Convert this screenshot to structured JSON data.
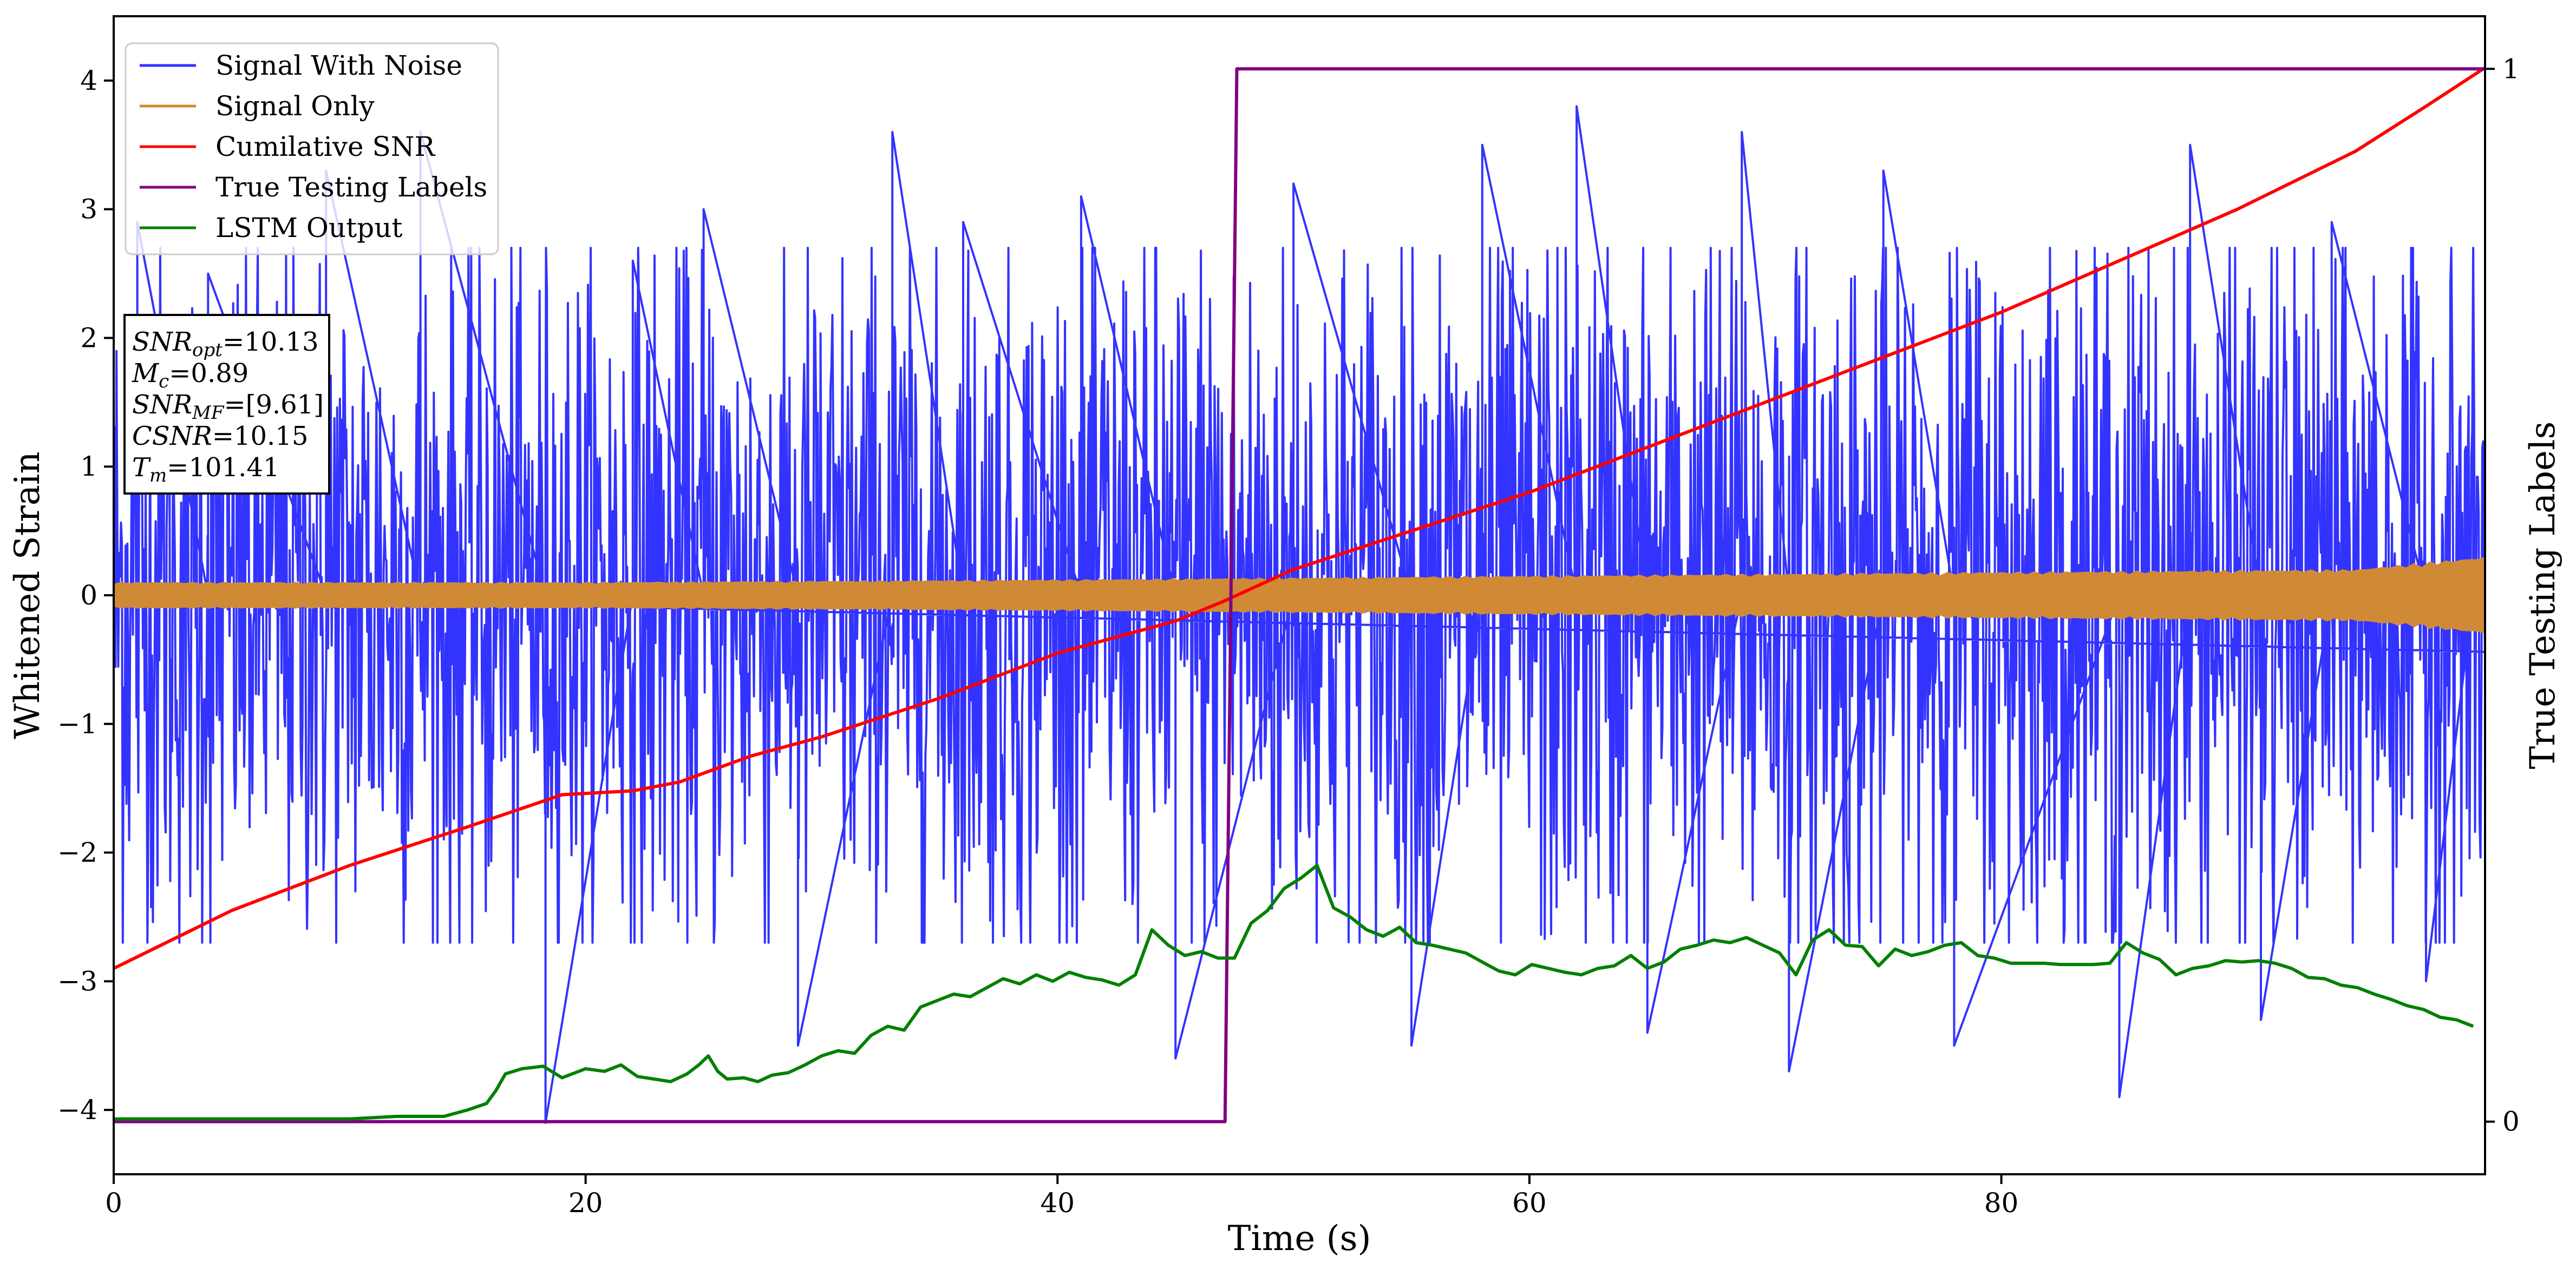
{
  "chart_data": {
    "type": "line",
    "xlabel": "Time (s)",
    "ylabel": "Whitened Strain",
    "ylabel_right": "True Testing Labels",
    "xlim": [
      0,
      100.5
    ],
    "ylim": [
      -4.5,
      4.5
    ],
    "ylim_right": [
      -0.05,
      1.05
    ],
    "x_ticks": [
      0,
      20,
      40,
      60,
      80
    ],
    "y_ticks": [
      -4,
      -3,
      -2,
      -1,
      0,
      1,
      2,
      3,
      4
    ],
    "y_ticks_right": [
      0,
      1
    ],
    "grid": false,
    "legend_position": "upper-left",
    "series": [
      {
        "name": "Signal With Noise",
        "axis": "left",
        "color": "#3333ff",
        "kind": "noise-band",
        "amplitude_envelope": [
          [
            0,
            2.2
          ],
          [
            20,
            2.2
          ],
          [
            50,
            2.3
          ],
          [
            80,
            2.4
          ],
          [
            100.5,
            2.4
          ]
        ],
        "spikes": [
          [
            1,
            2.9
          ],
          [
            4,
            2.5
          ],
          [
            9,
            3.3
          ],
          [
            13,
            3.6
          ],
          [
            18.3,
            -4.1
          ],
          [
            22,
            2.6
          ],
          [
            25,
            3.0
          ],
          [
            29,
            -3.5
          ],
          [
            33,
            3.6
          ],
          [
            36,
            2.9
          ],
          [
            41,
            3.1
          ],
          [
            45,
            -3.6
          ],
          [
            50,
            3.2
          ],
          [
            55,
            -3.5
          ],
          [
            58,
            3.5
          ],
          [
            62,
            3.8
          ],
          [
            65,
            -3.4
          ],
          [
            69,
            3.6
          ],
          [
            71,
            -3.7
          ],
          [
            75,
            3.3
          ],
          [
            78,
            -3.5
          ],
          [
            85,
            -3.9
          ],
          [
            88,
            3.5
          ],
          [
            91,
            -3.3
          ],
          [
            94,
            2.9
          ],
          [
            98,
            -3.0
          ],
          [
            100,
            2.7
          ]
        ]
      },
      {
        "name": "Signal Only",
        "axis": "left",
        "color": "#d08a35",
        "kind": "band",
        "amplitude_envelope": [
          [
            0,
            0.1
          ],
          [
            20,
            0.1
          ],
          [
            40,
            0.12
          ],
          [
            60,
            0.15
          ],
          [
            80,
            0.18
          ],
          [
            95,
            0.2
          ],
          [
            100.5,
            0.3
          ]
        ]
      },
      {
        "name": "Cumilative SNR",
        "axis": "left",
        "color": "#ff0000",
        "x": [
          0,
          5,
          10,
          15,
          19,
          22,
          24,
          27,
          30,
          35,
          40,
          45,
          47,
          50,
          55,
          60,
          65,
          70,
          75,
          80,
          85,
          90,
          95,
          98,
          100.5
        ],
        "y": [
          -2.9,
          -2.45,
          -2.1,
          -1.8,
          -1.55,
          -1.52,
          -1.45,
          -1.25,
          -1.1,
          -0.8,
          -0.45,
          -0.2,
          -0.05,
          0.2,
          0.5,
          0.8,
          1.15,
          1.5,
          1.85,
          2.2,
          2.6,
          3.0,
          3.45,
          3.8,
          4.1
        ]
      },
      {
        "name": "True Testing Labels",
        "axis": "right",
        "color": "#800080",
        "x": [
          0,
          47.1,
          47.6,
          100.5
        ],
        "y": [
          0,
          0,
          1,
          1
        ]
      },
      {
        "name": "LSTM Output",
        "axis": "left",
        "color": "#008000",
        "x": [
          0,
          10,
          12,
          14,
          15,
          15.8,
          16.2,
          16.6,
          17.3,
          18.2,
          19,
          20,
          20.8,
          21.5,
          22.2,
          22.9,
          23.6,
          24.3,
          24.8,
          25.2,
          25.6,
          26,
          26.7,
          27.3,
          27.9,
          28.6,
          29.3,
          30,
          30.7,
          31.4,
          32.1,
          32.8,
          33.5,
          34.2,
          34.9,
          35.6,
          36.3,
          37,
          37.7,
          38.4,
          39.1,
          39.8,
          40.5,
          41.2,
          41.9,
          42.6,
          43.3,
          44,
          44.7,
          45.4,
          46.1,
          46.8,
          47.5,
          48.2,
          48.9,
          49.6,
          50.3,
          51,
          51.7,
          52.4,
          53.1,
          53.8,
          54.5,
          55.2,
          55.9,
          56.6,
          57.3,
          58,
          58.7,
          59.4,
          60.1,
          60.8,
          61.5,
          62.2,
          62.9,
          63.6,
          64.3,
          65,
          65.7,
          66.4,
          67.1,
          67.8,
          68.5,
          69.2,
          69.9,
          70.6,
          71.3,
          72,
          72.7,
          73.4,
          74.1,
          74.8,
          75.5,
          76.2,
          76.9,
          77.6,
          78.3,
          79,
          79.7,
          80.4,
          81.1,
          81.8,
          82.5,
          83.2,
          83.9,
          84.6,
          85.3,
          86,
          86.7,
          87.4,
          88.1,
          88.8,
          89.5,
          90.2,
          90.9,
          91.6,
          92.3,
          93,
          93.7,
          94.4,
          95.1,
          95.8,
          96.5,
          97.2,
          97.9,
          98.6,
          99.3,
          100
        ],
        "y": [
          -4.07,
          -4.07,
          -4.05,
          -4.05,
          -4.0,
          -3.95,
          -3.85,
          -3.72,
          -3.68,
          -3.66,
          -3.75,
          -3.68,
          -3.7,
          -3.65,
          -3.74,
          -3.76,
          -3.78,
          -3.72,
          -3.65,
          -3.58,
          -3.7,
          -3.76,
          -3.75,
          -3.78,
          -3.73,
          -3.71,
          -3.65,
          -3.58,
          -3.54,
          -3.56,
          -3.42,
          -3.35,
          -3.38,
          -3.2,
          -3.15,
          -3.1,
          -3.12,
          -3.05,
          -2.98,
          -3.02,
          -2.95,
          -3.0,
          -2.93,
          -2.97,
          -2.99,
          -3.03,
          -2.95,
          -2.6,
          -2.72,
          -2.8,
          -2.77,
          -2.82,
          -2.82,
          -2.55,
          -2.45,
          -2.28,
          -2.2,
          -2.1,
          -2.43,
          -2.5,
          -2.6,
          -2.65,
          -2.58,
          -2.7,
          -2.72,
          -2.75,
          -2.78,
          -2.85,
          -2.92,
          -2.95,
          -2.87,
          -2.9,
          -2.93,
          -2.95,
          -2.9,
          -2.88,
          -2.8,
          -2.9,
          -2.85,
          -2.75,
          -2.72,
          -2.68,
          -2.7,
          -2.66,
          -2.72,
          -2.78,
          -2.95,
          -2.68,
          -2.6,
          -2.72,
          -2.73,
          -2.88,
          -2.75,
          -2.8,
          -2.77,
          -2.72,
          -2.7,
          -2.8,
          -2.82,
          -2.86,
          -2.86,
          -2.86,
          -2.87,
          -2.87,
          -2.87,
          -2.86,
          -2.7,
          -2.78,
          -2.83,
          -2.95,
          -2.9,
          -2.88,
          -2.84,
          -2.85,
          -2.84,
          -2.86,
          -2.9,
          -2.97,
          -2.98,
          -3.03,
          -3.05,
          -3.1,
          -3.14,
          -3.19,
          -3.22,
          -3.28,
          -3.3,
          -3.35
        ]
      }
    ],
    "annotation": {
      "lines": [
        {
          "base": "SNR",
          "sub": "opt",
          "value": "=10.13"
        },
        {
          "base": "M",
          "sub": "c",
          "value": "=0.89"
        },
        {
          "base": "SNR",
          "sub": "MF",
          "value": "=[9.61]"
        },
        {
          "base": "CSNR",
          "sub": "",
          "value": "=10.15"
        },
        {
          "base": "T",
          "sub": "m",
          "value": "=101.41"
        }
      ]
    }
  }
}
